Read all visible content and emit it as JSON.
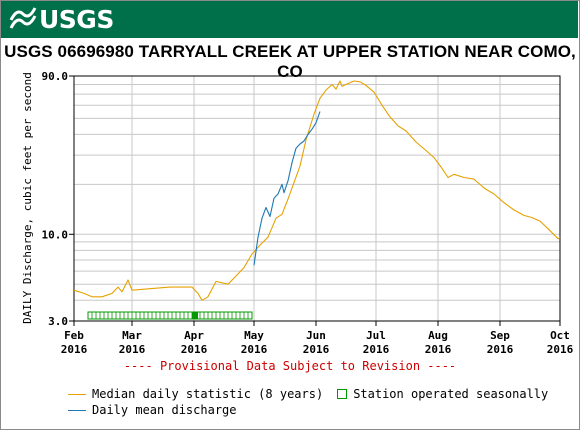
{
  "header": {
    "logo_text": "USGS",
    "brand_color": "#00704A"
  },
  "title": "USGS 06696980 TARRYALL CREEK AT UPPER STATION NEAR COMO, CO",
  "provisional_note": "---- Provisional Data Subject to Revision ----",
  "legend": {
    "median_label": "Median daily statistic (8 years)",
    "seasonal_label": "Station operated seasonally",
    "daily_label": "Daily mean discharge"
  },
  "colors": {
    "median": "#E6A100",
    "daily": "#1F78B4",
    "seasonal": "#009900",
    "provisional": "#CC0000",
    "grid": "#C8C8C8"
  },
  "chart_data": {
    "type": "line",
    "ylabel": "DAILY Discharge, cubic feet per second",
    "yscale": "log",
    "ylim": [
      3.0,
      90.0
    ],
    "y_ticks": [
      {
        "value": 3.0,
        "label": "3.0"
      },
      {
        "value": 10.0,
        "label": "10.0"
      },
      {
        "value": 90.0,
        "label": "90.0"
      }
    ],
    "xlim": [
      "2016-02-01",
      "2016-10-01"
    ],
    "x_ticks": [
      {
        "date": "2016-02-01",
        "month": "Feb",
        "year": "2016"
      },
      {
        "date": "2016-03-01",
        "month": "Mar",
        "year": "2016"
      },
      {
        "date": "2016-04-01",
        "month": "Apr",
        "year": "2016"
      },
      {
        "date": "2016-05-01",
        "month": "May",
        "year": "2016"
      },
      {
        "date": "2016-06-01",
        "month": "Jun",
        "year": "2016"
      },
      {
        "date": "2016-07-01",
        "month": "Jul",
        "year": "2016"
      },
      {
        "date": "2016-08-01",
        "month": "Aug",
        "year": "2016"
      },
      {
        "date": "2016-09-01",
        "month": "Sep",
        "year": "2016"
      },
      {
        "date": "2016-10-01",
        "month": "Oct",
        "year": "2016"
      }
    ],
    "grid": true,
    "series": [
      {
        "name": "Median daily statistic (8 years)",
        "points": [
          [
            "2016-02-01",
            4.6
          ],
          [
            "2016-02-06",
            4.4
          ],
          [
            "2016-02-10",
            4.2
          ],
          [
            "2016-02-15",
            4.2
          ],
          [
            "2016-02-20",
            4.4
          ],
          [
            "2016-02-23",
            4.8
          ],
          [
            "2016-02-25",
            4.5
          ],
          [
            "2016-02-28",
            5.3
          ],
          [
            "2016-03-01",
            4.6
          ],
          [
            "2016-03-10",
            4.7
          ],
          [
            "2016-03-20",
            4.8
          ],
          [
            "2016-03-31",
            4.8
          ],
          [
            "2016-04-03",
            4.4
          ],
          [
            "2016-04-05",
            4.0
          ],
          [
            "2016-04-08",
            4.2
          ],
          [
            "2016-04-12",
            5.2
          ],
          [
            "2016-04-18",
            5.0
          ],
          [
            "2016-04-22",
            5.6
          ],
          [
            "2016-04-26",
            6.3
          ],
          [
            "2016-04-30",
            7.6
          ],
          [
            "2016-05-04",
            8.6
          ],
          [
            "2016-05-08",
            9.6
          ],
          [
            "2016-05-12",
            12.5
          ],
          [
            "2016-05-15",
            13.2
          ],
          [
            "2016-05-18",
            16.3
          ],
          [
            "2016-05-21",
            20.5
          ],
          [
            "2016-05-24",
            25.8
          ],
          [
            "2016-05-27",
            37.0
          ],
          [
            "2016-05-31",
            53.0
          ],
          [
            "2016-06-03",
            66.0
          ],
          [
            "2016-06-06",
            74.0
          ],
          [
            "2016-06-09",
            80.0
          ],
          [
            "2016-06-11",
            75.0
          ],
          [
            "2016-06-13",
            84.0
          ],
          [
            "2016-06-14",
            78.0
          ],
          [
            "2016-06-17",
            81.0
          ],
          [
            "2016-06-20",
            84.0
          ],
          [
            "2016-06-23",
            83.0
          ],
          [
            "2016-06-26",
            79.0
          ],
          [
            "2016-06-30",
            72.0
          ],
          [
            "2016-07-04",
            60.0
          ],
          [
            "2016-07-08",
            51.0
          ],
          [
            "2016-07-12",
            45.0
          ],
          [
            "2016-07-16",
            42.0
          ],
          [
            "2016-07-21",
            36.0
          ],
          [
            "2016-07-26",
            32.0
          ],
          [
            "2016-07-30",
            29.0
          ],
          [
            "2016-08-03",
            25.0
          ],
          [
            "2016-08-06",
            22.0
          ],
          [
            "2016-08-09",
            23.0
          ],
          [
            "2016-08-14",
            22.0
          ],
          [
            "2016-08-19",
            21.5
          ],
          [
            "2016-08-24",
            19.0
          ],
          [
            "2016-08-29",
            17.5
          ],
          [
            "2016-09-03",
            15.5
          ],
          [
            "2016-09-08",
            14.0
          ],
          [
            "2016-09-13",
            13.0
          ],
          [
            "2016-09-17",
            12.6
          ],
          [
            "2016-09-21",
            12.0
          ],
          [
            "2016-09-25",
            10.8
          ],
          [
            "2016-09-30",
            9.4
          ],
          [
            "2016-10-01",
            9.6
          ]
        ]
      },
      {
        "name": "Daily mean discharge",
        "points": [
          [
            "2016-05-01",
            6.5
          ],
          [
            "2016-05-03",
            9.6
          ],
          [
            "2016-05-05",
            12.5
          ],
          [
            "2016-05-07",
            14.5
          ],
          [
            "2016-05-09",
            12.8
          ],
          [
            "2016-05-11",
            16.5
          ],
          [
            "2016-05-13",
            17.5
          ],
          [
            "2016-05-15",
            20.0
          ],
          [
            "2016-05-16",
            17.8
          ],
          [
            "2016-05-18",
            21.0
          ],
          [
            "2016-05-20",
            27.0
          ],
          [
            "2016-05-22",
            33.0
          ],
          [
            "2016-05-24",
            35.0
          ],
          [
            "2016-05-26",
            36.5
          ],
          [
            "2016-05-28",
            40.0
          ],
          [
            "2016-05-30",
            43.0
          ],
          [
            "2016-06-01",
            47.0
          ],
          [
            "2016-06-03",
            55.0
          ]
        ]
      }
    ],
    "seasonal_periods": [
      {
        "name": "Station operated seasonally",
        "start": "2016-02-08",
        "end": "2016-04-30"
      }
    ]
  }
}
